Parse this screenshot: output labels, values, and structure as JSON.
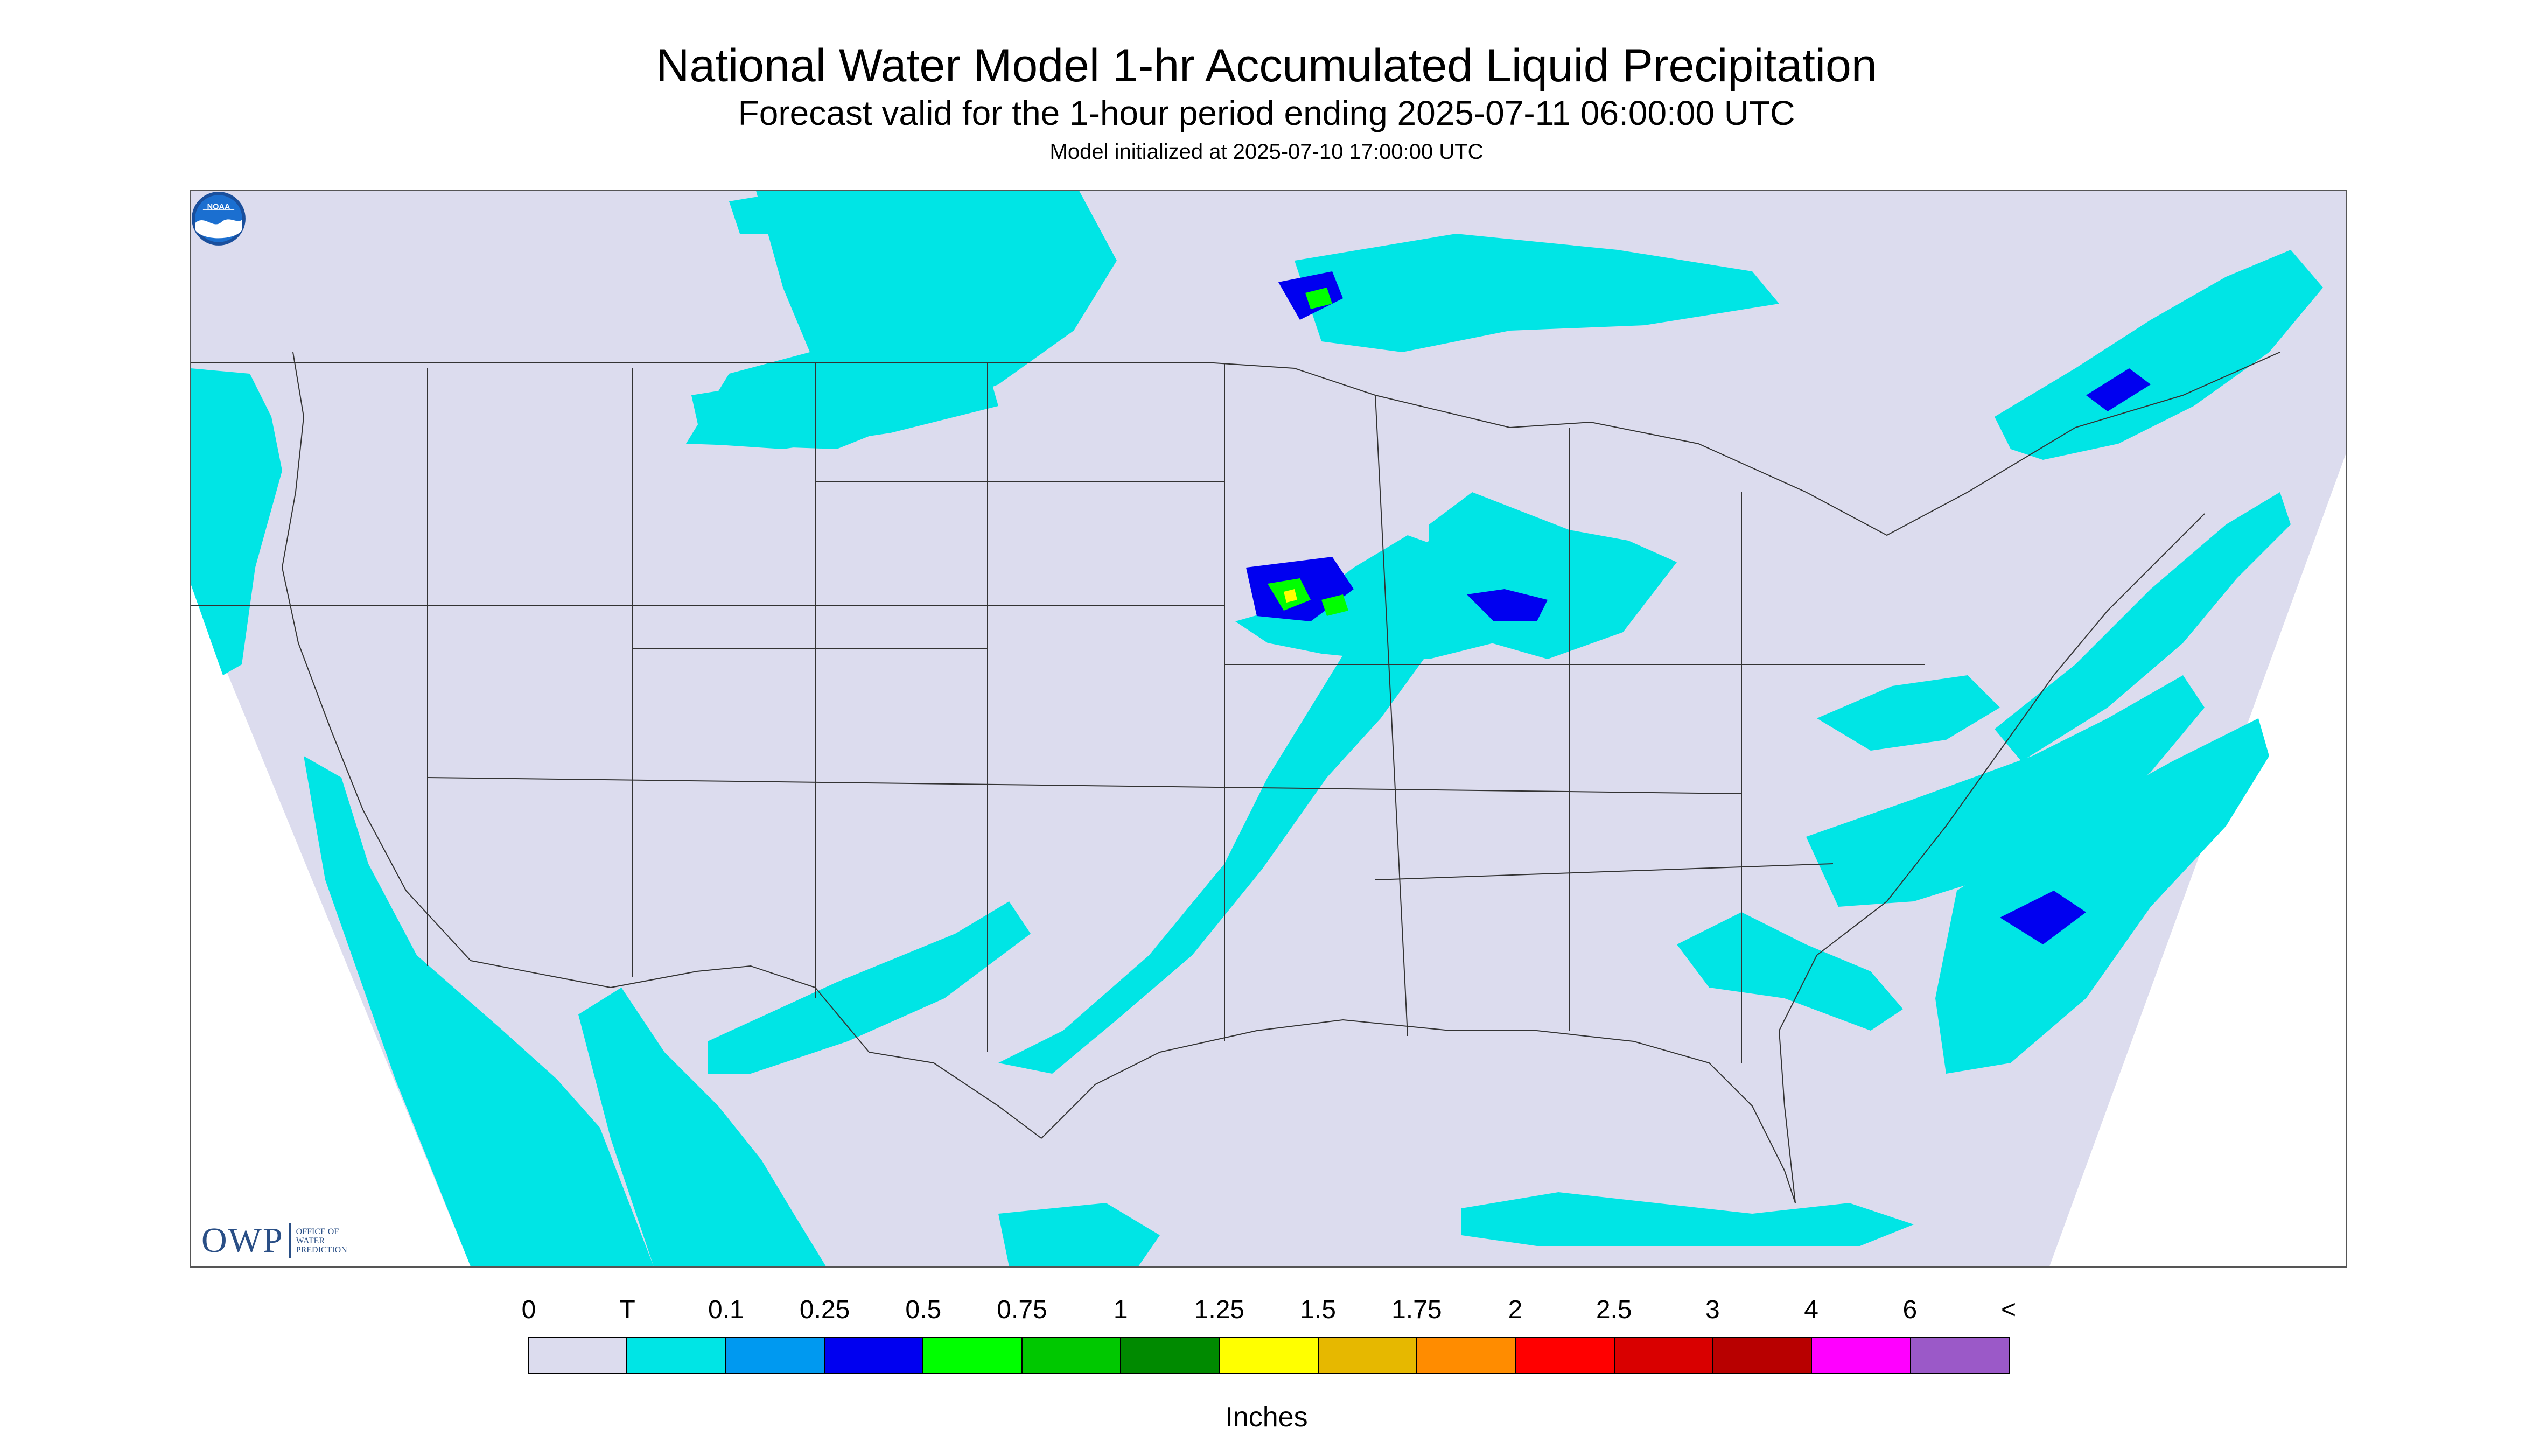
{
  "header": {
    "title": "National Water Model 1-hr Accumulated Liquid Precipitation",
    "subtitle": "Forecast valid for the 1-hour period ending 2025-07-11 06:00:00 UTC",
    "init": "Model initialized at 2025-07-10 17:00:00 UTC"
  },
  "map": {
    "background_color": "#dcdcee",
    "outside_color": "#ffffff",
    "border_color": "#333333",
    "precip_colors": {
      "trace": "#00e5e5",
      "light": "#0099f0",
      "moderate": "#0000f0",
      "heavy": "#00ff00",
      "heavier": "#00c800",
      "yellow": "#ffff00"
    }
  },
  "logos": {
    "owp_text": "OWP",
    "owp_line1": "OFFICE OF",
    "owp_line2": "WATER",
    "owp_line3": "PREDICTION",
    "noaa_text": "NOAA"
  },
  "legend": {
    "labels": [
      "0",
      "T",
      "0.1",
      "0.25",
      "0.5",
      "0.75",
      "1",
      "1.25",
      "1.5",
      "1.75",
      "2",
      "2.5",
      "3",
      "4",
      "6",
      "<"
    ],
    "colors": [
      "#dcdcee",
      "#00e5e5",
      "#0099f0",
      "#0000f0",
      "#00ff00",
      "#00c800",
      "#008a00",
      "#ffff00",
      "#e6b800",
      "#ff8c00",
      "#ff0000",
      "#d90000",
      "#b80000",
      "#ff00ff",
      "#9b59c8"
    ],
    "units": "Inches"
  }
}
